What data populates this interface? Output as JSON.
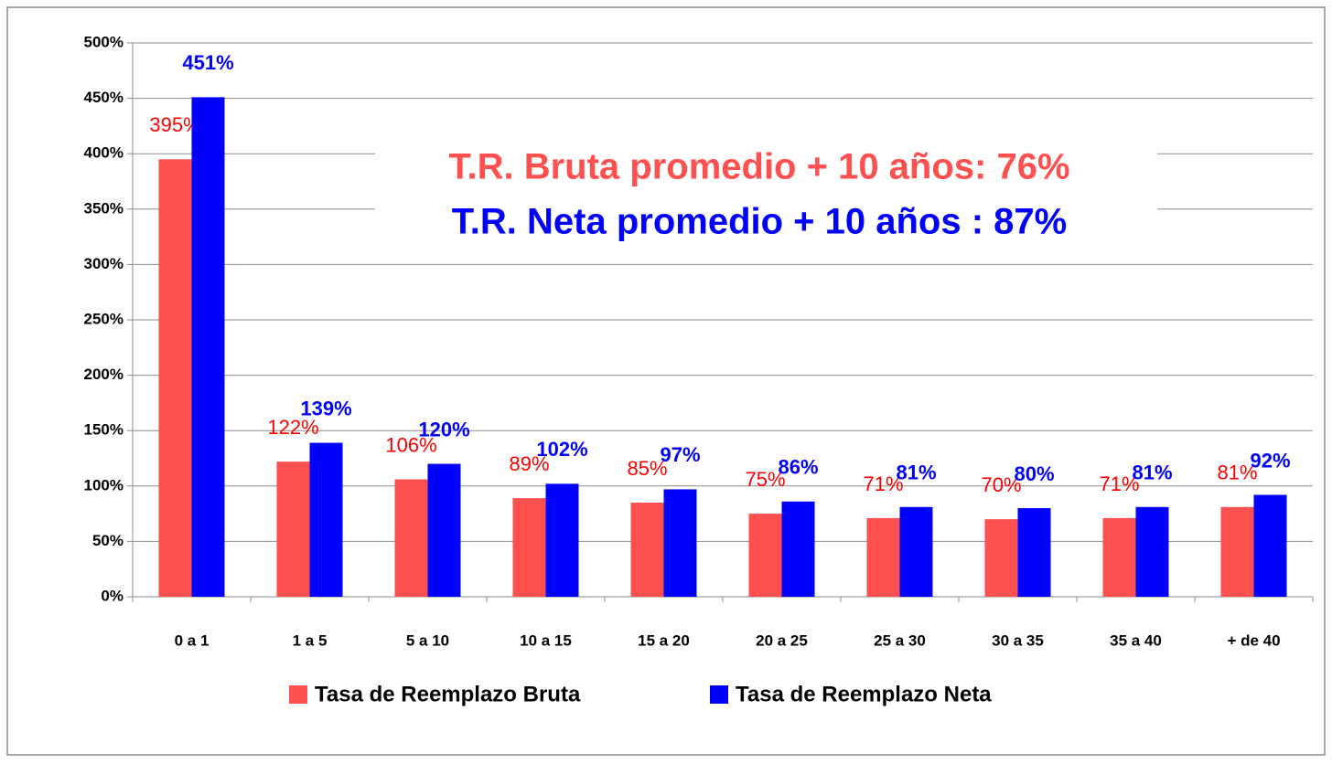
{
  "chart_data": {
    "type": "bar",
    "categories": [
      "0 a 1",
      "1 a 5",
      "5 a 10",
      "10 a 15",
      "15 a 20",
      "20 a 25",
      "25 a 30",
      "30 a 35",
      "35 a 40",
      "+ de 40"
    ],
    "series": [
      {
        "name": "Tasa de Reemplazo Bruta",
        "color": "#ff5050",
        "values": [
          395,
          122,
          106,
          89,
          85,
          75,
          71,
          70,
          71,
          81
        ],
        "value_labels": [
          "395%",
          "122%",
          "106%",
          "89%",
          "85%",
          "75%",
          "71%",
          "70%",
          "71%",
          "81%"
        ]
      },
      {
        "name": "Tasa de Reemplazo Neta",
        "color": "#0000ff",
        "values": [
          451,
          139,
          120,
          102,
          97,
          86,
          81,
          80,
          81,
          92
        ],
        "value_labels": [
          "451%",
          "139%",
          "120%",
          "102%",
          "97%",
          "86%",
          "81%",
          "80%",
          "81%",
          "92%"
        ]
      }
    ],
    "annotations": [
      "T.R. Bruta promedio + 10 años: 76%",
      "T.R. Neta promedio + 10 años  : 87%"
    ],
    "ylim": [
      0,
      500
    ],
    "yticks": [
      {
        "value": 0,
        "label": "0%"
      },
      {
        "value": 50,
        "label": "50%"
      },
      {
        "value": 100,
        "label": "100%"
      },
      {
        "value": 150,
        "label": "150%"
      },
      {
        "value": 200,
        "label": "200%"
      },
      {
        "value": 250,
        "label": "250%"
      },
      {
        "value": 300,
        "label": "300%"
      },
      {
        "value": 350,
        "label": "350%"
      },
      {
        "value": 400,
        "label": "400%"
      },
      {
        "value": 450,
        "label": "450%"
      },
      {
        "value": 500,
        "label": "500%"
      }
    ],
    "grid": true,
    "legend": "bottom"
  }
}
